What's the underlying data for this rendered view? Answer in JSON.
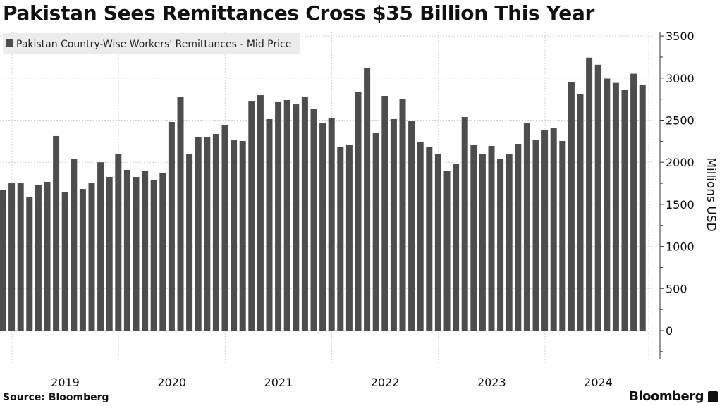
{
  "title": "Pakistan Sees Remittances Cross $35 Billion This Year",
  "source": "Source: Bloomberg",
  "brand": "Bloomberg",
  "chart_data": {
    "type": "bar",
    "title": "Pakistan Sees Remittances Cross $35 Billion This Year",
    "legend": {
      "label": "Pakistan Country-Wise Workers' Remittances - Mid Price",
      "placement": "top-left"
    },
    "xlabel": "",
    "ylabel": "Millions USD",
    "ylim": [
      -300,
      3550
    ],
    "yticks": [
      0,
      500,
      1000,
      1500,
      2000,
      2500,
      3000,
      3500
    ],
    "grid": true,
    "bar_color": "#4d4d4d",
    "year_labels": [
      "2019",
      "2020",
      "2021",
      "2022",
      "2023",
      "2024"
    ],
    "categories": [
      "2018-11",
      "2018-12",
      "2019-01",
      "2019-02",
      "2019-03",
      "2019-04",
      "2019-05",
      "2019-06",
      "2019-07",
      "2019-08",
      "2019-09",
      "2019-10",
      "2019-11",
      "2019-12",
      "2020-01",
      "2020-02",
      "2020-03",
      "2020-04",
      "2020-05",
      "2020-06",
      "2020-07",
      "2020-08",
      "2020-09",
      "2020-10",
      "2020-11",
      "2020-12",
      "2021-01",
      "2021-02",
      "2021-03",
      "2021-04",
      "2021-05",
      "2021-06",
      "2021-07",
      "2021-08",
      "2021-09",
      "2021-10",
      "2021-11",
      "2021-12",
      "2022-01",
      "2022-02",
      "2022-03",
      "2022-04",
      "2022-05",
      "2022-06",
      "2022-07",
      "2022-08",
      "2022-09",
      "2022-10",
      "2022-11",
      "2022-12",
      "2023-01",
      "2023-02",
      "2023-03",
      "2023-04",
      "2023-05",
      "2023-06",
      "2023-07",
      "2023-08",
      "2023-09",
      "2023-10",
      "2023-11",
      "2023-12",
      "2024-01",
      "2024-02",
      "2024-03",
      "2024-04",
      "2024-05",
      "2024-06",
      "2024-07",
      "2024-08",
      "2024-09",
      "2024-10",
      "2024-11"
    ],
    "values": [
      1667,
      1750,
      1750,
      1583,
      1733,
      1767,
      2312,
      1642,
      2035,
      1683,
      1750,
      2000,
      1826,
      2094,
      1910,
      1826,
      1901,
      1792,
      1868,
      2479,
      2772,
      2102,
      2295,
      2295,
      2337,
      2446,
      2261,
      2253,
      2730,
      2797,
      2513,
      2714,
      2739,
      2688,
      2781,
      2638,
      2462,
      2529,
      2186,
      2203,
      2839,
      3124,
      2353,
      2789,
      2513,
      2747,
      2487,
      2245,
      2178,
      2102,
      1901,
      1985,
      2538,
      2203,
      2102,
      2194,
      2035,
      2094,
      2211,
      2471,
      2261,
      2379,
      2404,
      2253,
      2954,
      2813,
      3243,
      3159,
      2994,
      2943,
      2859,
      3052,
      2916
    ]
  }
}
